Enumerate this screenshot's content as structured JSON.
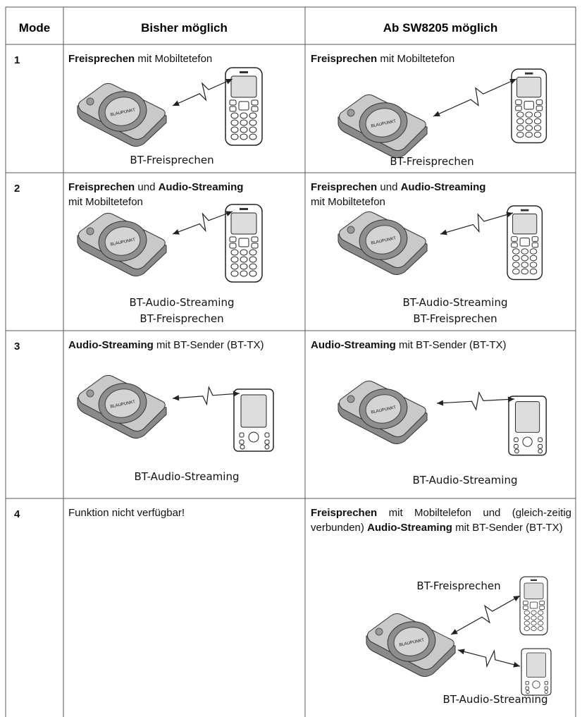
{
  "header": [
    "Mode",
    "Bisher möglich",
    "Ab SW8205 möglich"
  ],
  "device_label": "BLAUPUNKT",
  "rows": [
    {
      "mode": "1",
      "before": {
        "lines": [
          [
            {
              "t": "Freisprechen",
              "b": true
            },
            {
              "t": " mit Mobiltetefon",
              "b": false
            }
          ]
        ],
        "captions": [
          "BT-Freisprechen"
        ]
      },
      "after": {
        "lines": [
          [
            {
              "t": "Freisprechen",
              "b": true
            },
            {
              "t": " mit Mobiltetefon",
              "b": false
            }
          ]
        ],
        "captions": [
          "BT-Freisprechen"
        ]
      }
    },
    {
      "mode": "2",
      "before": {
        "lines": [
          [
            {
              "t": "Freisprechen",
              "b": true
            },
            {
              "t": " und ",
              "b": false
            },
            {
              "t": "Audio-Streaming",
              "b": true
            }
          ],
          [
            {
              "t": "mit Mobiltetefon",
              "b": false
            }
          ]
        ],
        "captions": [
          "BT-Audio-Streaming",
          "BT-Freisprechen"
        ]
      },
      "after": {
        "lines": [
          [
            {
              "t": "Freisprechen",
              "b": true
            },
            {
              "t": " und ",
              "b": false
            },
            {
              "t": "Audio-Streaming",
              "b": true
            }
          ],
          [
            {
              "t": "mit Mobiltetefon",
              "b": false
            }
          ]
        ],
        "captions": [
          "BT-Audio-Streaming",
          "BT-Freisprechen"
        ]
      }
    },
    {
      "mode": "3",
      "before": {
        "lines": [
          [
            {
              "t": "Audio-Streaming",
              "b": true
            },
            {
              "t": " mit BT-Sender (BT-TX)",
              "b": false
            }
          ]
        ],
        "captions": [
          "BT-Audio-Streaming"
        ]
      },
      "after": {
        "lines": [
          [
            {
              "t": "Audio-Streaming",
              "b": true
            },
            {
              "t": " mit BT-Sender (BT-TX)",
              "b": false
            }
          ]
        ],
        "captions": [
          "BT-Audio-Streaming"
        ]
      }
    },
    {
      "mode": "4",
      "before": {
        "lines": [
          [
            {
              "t": "Funktion nicht verfügbar!",
              "b": false
            }
          ]
        ],
        "captions": []
      },
      "after": {
        "lines": [
          [
            {
              "t": "Freisprechen",
              "b": true
            },
            {
              "t": " mit Mobiltelefon und (gleich-zeitig verbunden) ",
              "b": false
            },
            {
              "t": "Audio-Streaming",
              "b": true
            },
            {
              "t": " mit BT-Sender (BT-TX)",
              "b": false
            }
          ]
        ],
        "captions": [
          "BT-Freisprechen",
          "BT-Audio-Streaming"
        ]
      }
    }
  ]
}
